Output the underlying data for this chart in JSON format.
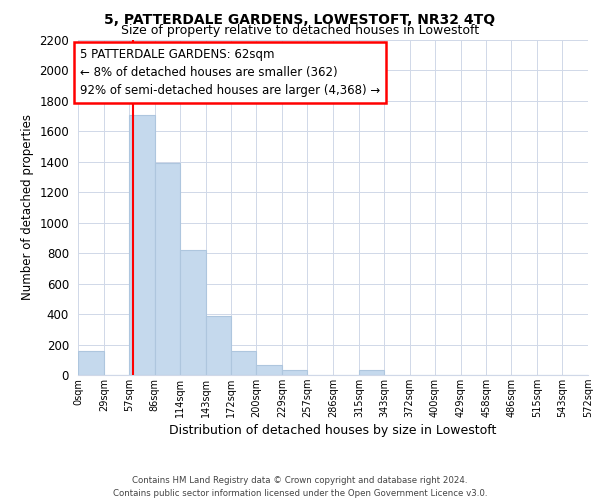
{
  "title": "5, PATTERDALE GARDENS, LOWESTOFT, NR32 4TQ",
  "subtitle": "Size of property relative to detached houses in Lowestoft",
  "xlabel": "Distribution of detached houses by size in Lowestoft",
  "ylabel": "Number of detached properties",
  "bar_edges": [
    0,
    29,
    57,
    86,
    114,
    143,
    172,
    200,
    229,
    257,
    286,
    315,
    343,
    372,
    400,
    429,
    458,
    486,
    515,
    543,
    572
  ],
  "bar_heights": [
    160,
    0,
    1710,
    1390,
    820,
    385,
    160,
    65,
    30,
    0,
    0,
    30,
    0,
    0,
    0,
    0,
    0,
    0,
    0,
    0
  ],
  "bar_color": "#c5d9ed",
  "bar_edge_color": "#aec6de",
  "property_line_x": 62,
  "property_line_color": "red",
  "ylim": [
    0,
    2200
  ],
  "yticks": [
    0,
    200,
    400,
    600,
    800,
    1000,
    1200,
    1400,
    1600,
    1800,
    2000,
    2200
  ],
  "xtick_labels": [
    "0sqm",
    "29sqm",
    "57sqm",
    "86sqm",
    "114sqm",
    "143sqm",
    "172sqm",
    "200sqm",
    "229sqm",
    "257sqm",
    "286sqm",
    "315sqm",
    "343sqm",
    "372sqm",
    "400sqm",
    "429sqm",
    "458sqm",
    "486sqm",
    "515sqm",
    "543sqm",
    "572sqm"
  ],
  "annotation_title": "5 PATTERDALE GARDENS: 62sqm",
  "annotation_line1": "← 8% of detached houses are smaller (362)",
  "annotation_line2": "92% of semi-detached houses are larger (4,368) →",
  "annotation_box_color": "white",
  "annotation_box_edge": "red",
  "footer_line1": "Contains HM Land Registry data © Crown copyright and database right 2024.",
  "footer_line2": "Contains public sector information licensed under the Open Government Licence v3.0.",
  "grid_color": "#d0d8e8",
  "background_color": "white"
}
